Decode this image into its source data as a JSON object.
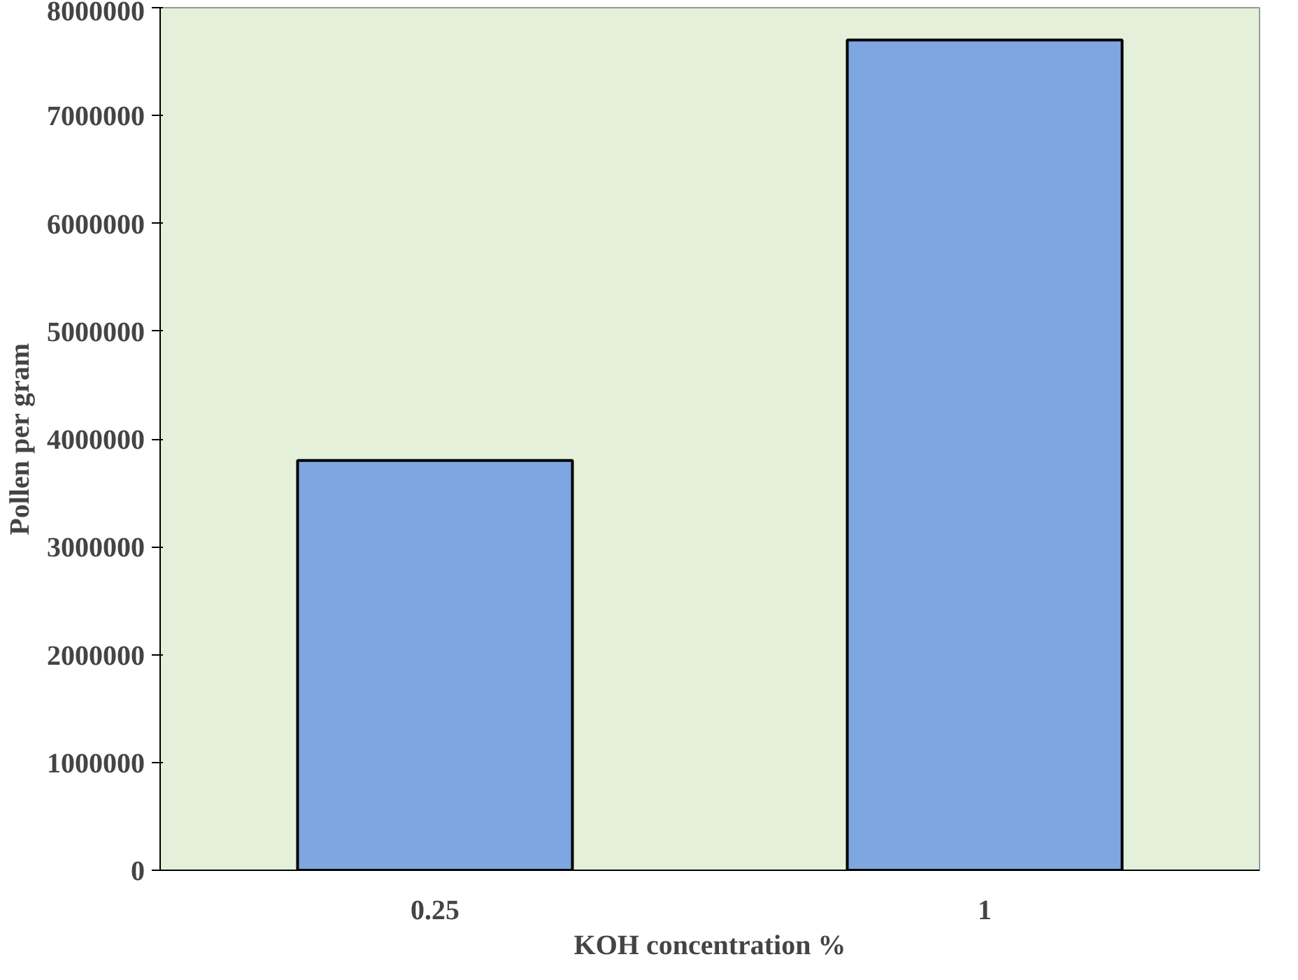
{
  "chart_data": {
    "type": "bar",
    "xlabel": "KOH concentration %",
    "ylabel": "Pollen per gram",
    "categories": [
      "0.25",
      "1"
    ],
    "values": [
      3800000,
      7700000
    ],
    "color": "#7ea6e0",
    "ylim": [
      0,
      8000000
    ],
    "yticks": [
      0,
      1000000,
      2000000,
      3000000,
      4000000,
      5000000,
      6000000,
      7000000,
      8000000
    ],
    "grid": false
  }
}
